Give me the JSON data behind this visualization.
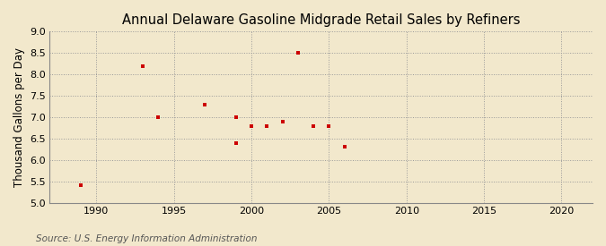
{
  "title": "Annual Delaware Gasoline Midgrade Retail Sales by Refiners",
  "ylabel": "Thousand Gallons per Day",
  "source": "Source: U.S. Energy Information Administration",
  "xlim": [
    1987,
    2022
  ],
  "ylim": [
    5.0,
    9.0
  ],
  "xticks": [
    1990,
    1995,
    2000,
    2005,
    2010,
    2015,
    2020
  ],
  "yticks": [
    5.0,
    5.5,
    6.0,
    6.5,
    7.0,
    7.5,
    8.0,
    8.5,
    9.0
  ],
  "background_color": "#f2e8cc",
  "plot_bg_color": "#f2e8cc",
  "grid_color": "#999999",
  "marker_color": "#cc0000",
  "data_x": [
    1989,
    1993,
    1994,
    1997,
    1999,
    1999,
    2000,
    2001,
    2002,
    2003,
    2004,
    2005,
    2006
  ],
  "data_y": [
    5.4,
    8.2,
    7.0,
    7.3,
    7.0,
    6.4,
    6.8,
    6.8,
    6.9,
    8.5,
    6.8,
    6.8,
    6.3
  ],
  "title_fontsize": 10.5,
  "label_fontsize": 8.5,
  "tick_fontsize": 8,
  "source_fontsize": 7.5
}
